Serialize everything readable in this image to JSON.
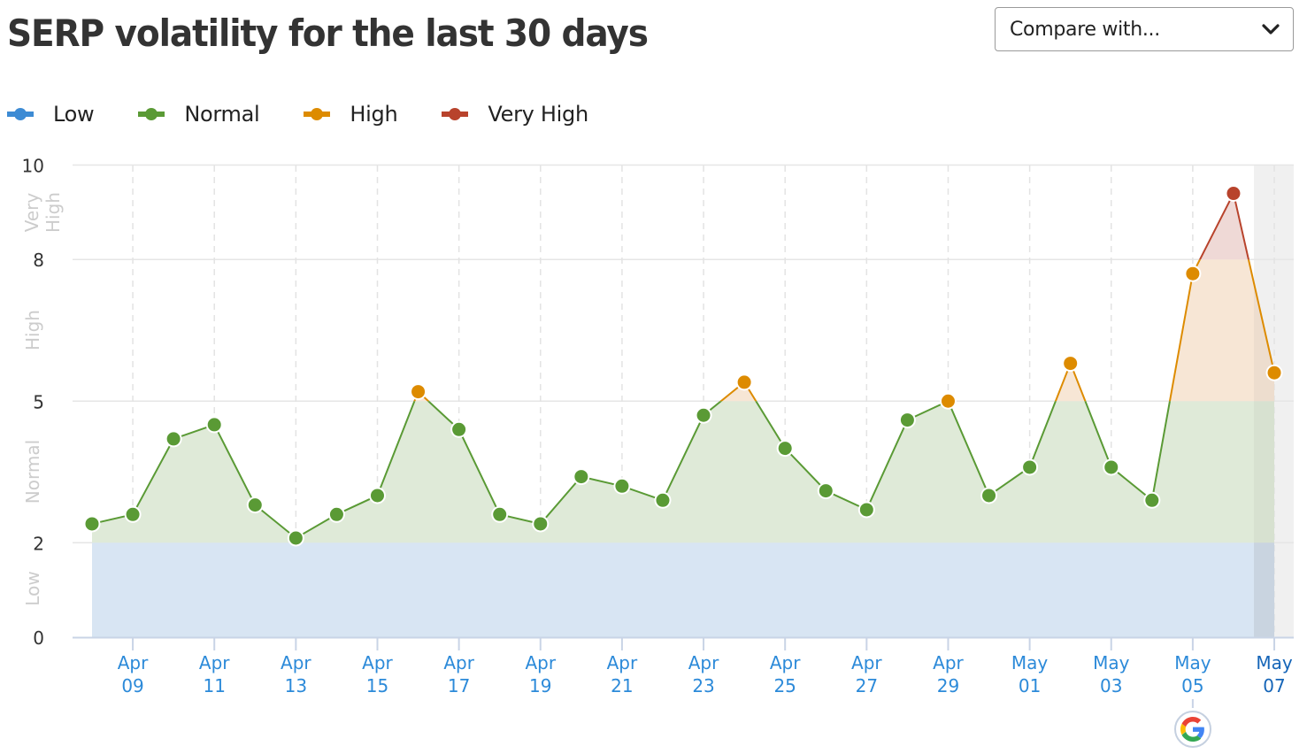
{
  "header": {
    "title": "SERP volatility for the last 30 days",
    "compare_select": {
      "label": "Compare with...",
      "icon": "chevron-down-icon"
    }
  },
  "legend": [
    {
      "label": "Low",
      "color": "#3d8bd4"
    },
    {
      "label": "Normal",
      "color": "#5a9a35"
    },
    {
      "label": "High",
      "color": "#dd8b00"
    },
    {
      "label": "Very High",
      "color": "#b8432c"
    }
  ],
  "colors": {
    "low_band": "#d8e5f3",
    "normal_fill": "#dfead8",
    "high_fill": "#f7e6d5",
    "very_high_fill": "#efd9d6",
    "gridline": "#e6e6e6",
    "axis_line": "#c9d4e6",
    "x_label": "#2c8ad9",
    "x_label_active": "#1565b8",
    "y_label": "#333333",
    "band_label": "#cccccc",
    "selected_shade": "#f0f0f0"
  },
  "google_update_marker": {
    "date": "May 05",
    "icon": "google-g-icon"
  },
  "chart_data": {
    "type": "line",
    "title": "SERP volatility for the last 30 days",
    "xlabel": "",
    "ylabel": "",
    "ylim": [
      0,
      10
    ],
    "y_ticks": [
      0,
      2,
      5,
      8,
      10
    ],
    "y_bands": [
      {
        "label": "Low",
        "from": 0,
        "to": 2
      },
      {
        "label": "Normal",
        "from": 2,
        "to": 5
      },
      {
        "label": "High",
        "from": 5,
        "to": 8
      },
      {
        "label": "Very High",
        "from": 8,
        "to": 10
      }
    ],
    "x_tick_labels": [
      [
        "Apr",
        "09"
      ],
      [
        "Apr",
        "11"
      ],
      [
        "Apr",
        "13"
      ],
      [
        "Apr",
        "15"
      ],
      [
        "Apr",
        "17"
      ],
      [
        "Apr",
        "19"
      ],
      [
        "Apr",
        "21"
      ],
      [
        "Apr",
        "23"
      ],
      [
        "Apr",
        "25"
      ],
      [
        "Apr",
        "27"
      ],
      [
        "Apr",
        "29"
      ],
      [
        "May",
        "01"
      ],
      [
        "May",
        "03"
      ],
      [
        "May",
        "05"
      ],
      [
        "May",
        "07"
      ]
    ],
    "x": [
      "Apr 08",
      "Apr 09",
      "Apr 10",
      "Apr 11",
      "Apr 12",
      "Apr 13",
      "Apr 14",
      "Apr 15",
      "Apr 16",
      "Apr 17",
      "Apr 18",
      "Apr 19",
      "Apr 20",
      "Apr 21",
      "Apr 22",
      "Apr 23",
      "Apr 24",
      "Apr 25",
      "Apr 26",
      "Apr 27",
      "Apr 28",
      "Apr 29",
      "Apr 30",
      "May 01",
      "May 02",
      "May 03",
      "May 04",
      "May 05",
      "May 06",
      "May 07"
    ],
    "series": [
      {
        "name": "SERP volatility",
        "values": [
          2.4,
          2.6,
          4.2,
          4.5,
          2.8,
          2.1,
          2.6,
          3.0,
          5.2,
          4.4,
          2.6,
          2.4,
          3.4,
          3.2,
          2.9,
          4.7,
          5.4,
          4.0,
          3.1,
          2.7,
          4.6,
          5.0,
          3.0,
          3.6,
          5.8,
          3.6,
          2.9,
          7.7,
          9.4,
          5.6
        ]
      }
    ],
    "legend_position": "top",
    "grid": true,
    "highlighted_range": [
      "May 07"
    ]
  }
}
